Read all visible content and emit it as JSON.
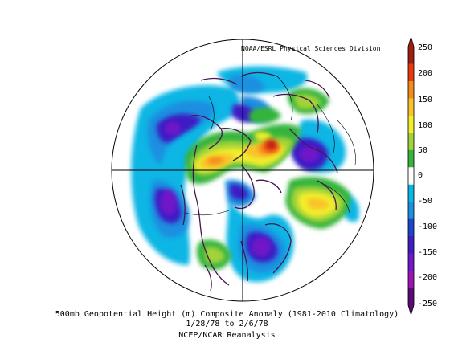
{
  "credit": "NOAA/ESRL Physical Sciences Division",
  "caption": {
    "line1": "500mb Geopotential Height (m) Composite Anomaly (1981-2010 Climatology)",
    "line2": "1/28/78  to 2/6/78",
    "line3": "NCEP/NCAR Reanalysis"
  },
  "colorbar": {
    "labels": [
      "250",
      "200",
      "150",
      "100",
      "50",
      "0",
      "-50",
      "-100",
      "-150",
      "-200",
      "-250"
    ],
    "colors": [
      "#a01c14",
      "#e8380f",
      "#f48a1a",
      "#f9c22b",
      "#f2ee2c",
      "#a3d33a",
      "#36b43e",
      "#ffffff",
      "#09b6e4",
      "#1b8fe0",
      "#1b46cc",
      "#3e1ec4",
      "#7118c8",
      "#9e12b4",
      "#5a0a78"
    ]
  },
  "colors": {
    "coastline": "#4a1450",
    "grid": "#000000",
    "ocean": "#ffffff"
  }
}
